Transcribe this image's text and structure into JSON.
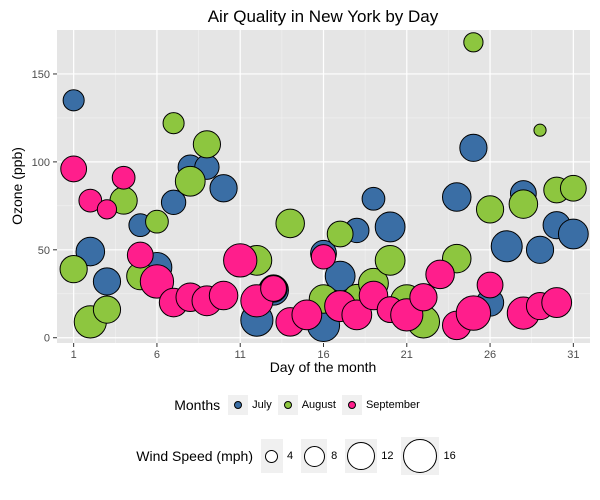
{
  "chart_data": {
    "type": "scatter",
    "title": "Air Quality in New York by Day",
    "xlabel": "Day of the month",
    "ylabel": "Ozone (ppb)",
    "xlim": [
      0,
      32
    ],
    "ylim": [
      -3,
      175
    ],
    "x_ticks": [
      1,
      6,
      11,
      16,
      21,
      26,
      31
    ],
    "y_ticks": [
      0,
      50,
      100,
      150
    ],
    "grid": true,
    "legend_position": "bottom",
    "color_legend": {
      "title": "Months",
      "entries": [
        {
          "name": "July",
          "color": "#3a6ea5"
        },
        {
          "name": "August",
          "color": "#8dc63f"
        },
        {
          "name": "September",
          "color": "#ff1e8c"
        }
      ]
    },
    "size_legend": {
      "title": "Wind Speed (mph)",
      "values": [
        4,
        8,
        12,
        16
      ]
    },
    "series": [
      {
        "name": "July",
        "color": "#3a6ea5",
        "points": [
          {
            "x": 1,
            "y": 135,
            "wind": 6
          },
          {
            "x": 2,
            "y": 49,
            "wind": 11
          },
          {
            "x": 3,
            "y": 32,
            "wind": 10
          },
          {
            "x": 5,
            "y": 64,
            "wind": 7
          },
          {
            "x": 6,
            "y": 40,
            "wind": 12
          },
          {
            "x": 7,
            "y": 77,
            "wind": 8
          },
          {
            "x": 8,
            "y": 97,
            "wind": 8
          },
          {
            "x": 9,
            "y": 97,
            "wind": 8
          },
          {
            "x": 10,
            "y": 85,
            "wind": 10
          },
          {
            "x": 12,
            "y": 10,
            "wind": 14
          },
          {
            "x": 13,
            "y": 27,
            "wind": 12
          },
          {
            "x": 16,
            "y": 7,
            "wind": 14
          },
          {
            "x": 16,
            "y": 48,
            "wind": 9
          },
          {
            "x": 17,
            "y": 35,
            "wind": 12
          },
          {
            "x": 18,
            "y": 61,
            "wind": 8
          },
          {
            "x": 19,
            "y": 79,
            "wind": 7
          },
          {
            "x": 20,
            "y": 63,
            "wind": 12
          },
          {
            "x": 20,
            "y": 16,
            "wind": 9
          },
          {
            "x": 24,
            "y": 80,
            "wind": 11
          },
          {
            "x": 25,
            "y": 108,
            "wind": 10
          },
          {
            "x": 26,
            "y": 20,
            "wind": 10
          },
          {
            "x": 27,
            "y": 52,
            "wind": 13
          },
          {
            "x": 28,
            "y": 82,
            "wind": 9
          },
          {
            "x": 29,
            "y": 50,
            "wind": 10
          },
          {
            "x": 30,
            "y": 64,
            "wind": 10
          },
          {
            "x": 31,
            "y": 59,
            "wind": 12
          }
        ]
      },
      {
        "name": "August",
        "color": "#8dc63f",
        "points": [
          {
            "x": 1,
            "y": 39,
            "wind": 10
          },
          {
            "x": 2,
            "y": 9,
            "wind": 14
          },
          {
            "x": 3,
            "y": 16,
            "wind": 10
          },
          {
            "x": 4,
            "y": 78,
            "wind": 10
          },
          {
            "x": 5,
            "y": 35,
            "wind": 10
          },
          {
            "x": 6,
            "y": 66,
            "wind": 7
          },
          {
            "x": 7,
            "y": 122,
            "wind": 6
          },
          {
            "x": 8,
            "y": 89,
            "wind": 12
          },
          {
            "x": 9,
            "y": 110,
            "wind": 10
          },
          {
            "x": 12,
            "y": 44,
            "wind": 12
          },
          {
            "x": 13,
            "y": 28,
            "wind": 10
          },
          {
            "x": 14,
            "y": 65,
            "wind": 11
          },
          {
            "x": 16,
            "y": 22,
            "wind": 11
          },
          {
            "x": 17,
            "y": 59,
            "wind": 9
          },
          {
            "x": 18,
            "y": 23,
            "wind": 9
          },
          {
            "x": 19,
            "y": 31,
            "wind": 12
          },
          {
            "x": 20,
            "y": 44,
            "wind": 12
          },
          {
            "x": 21,
            "y": 21,
            "wind": 14
          },
          {
            "x": 22,
            "y": 9,
            "wind": 14
          },
          {
            "x": 24,
            "y": 45,
            "wind": 11
          },
          {
            "x": 25,
            "y": 168,
            "wind": 5
          },
          {
            "x": 26,
            "y": 73,
            "wind": 10
          },
          {
            "x": 28,
            "y": 76,
            "wind": 11
          },
          {
            "x": 29,
            "y": 118,
            "wind": 2
          },
          {
            "x": 30,
            "y": 84,
            "wind": 9
          },
          {
            "x": 31,
            "y": 85,
            "wind": 9
          }
        ]
      },
      {
        "name": "September",
        "color": "#ff1e8c",
        "points": [
          {
            "x": 1,
            "y": 96,
            "wind": 9
          },
          {
            "x": 2,
            "y": 78,
            "wind": 7
          },
          {
            "x": 3,
            "y": 73,
            "wind": 5
          },
          {
            "x": 4,
            "y": 91,
            "wind": 7
          },
          {
            "x": 5,
            "y": 47,
            "wind": 9
          },
          {
            "x": 6,
            "y": 32,
            "wind": 15
          },
          {
            "x": 7,
            "y": 20,
            "wind": 11
          },
          {
            "x": 8,
            "y": 23,
            "wind": 11
          },
          {
            "x": 9,
            "y": 21,
            "wind": 12
          },
          {
            "x": 10,
            "y": 24,
            "wind": 11
          },
          {
            "x": 11,
            "y": 44,
            "wind": 15
          },
          {
            "x": 12,
            "y": 21,
            "wind": 14
          },
          {
            "x": 13,
            "y": 28,
            "wind": 9
          },
          {
            "x": 14,
            "y": 9,
            "wind": 11
          },
          {
            "x": 15,
            "y": 13,
            "wind": 12
          },
          {
            "x": 16,
            "y": 46,
            "wind": 8
          },
          {
            "x": 17,
            "y": 18,
            "wind": 13
          },
          {
            "x": 18,
            "y": 13,
            "wind": 12
          },
          {
            "x": 19,
            "y": 24,
            "wind": 11
          },
          {
            "x": 20,
            "y": 16,
            "wind": 9
          },
          {
            "x": 21,
            "y": 13,
            "wind": 14
          },
          {
            "x": 22,
            "y": 23,
            "wind": 10
          },
          {
            "x": 23,
            "y": 36,
            "wind": 11
          },
          {
            "x": 24,
            "y": 7,
            "wind": 11
          },
          {
            "x": 25,
            "y": 14,
            "wind": 16
          },
          {
            "x": 26,
            "y": 30,
            "wind": 9
          },
          {
            "x": 28,
            "y": 14,
            "wind": 14
          },
          {
            "x": 29,
            "y": 18,
            "wind": 10
          },
          {
            "x": 30,
            "y": 20,
            "wind": 12
          }
        ]
      }
    ]
  }
}
